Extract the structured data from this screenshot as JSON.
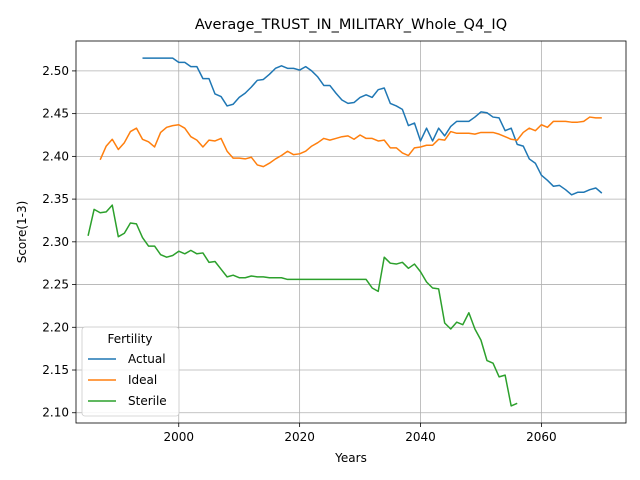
{
  "chart_data": {
    "type": "line",
    "title": "Average_TRUST_IN_MILITARY_Whole_Q4_IQ",
    "xlabel": "Years",
    "ylabel": "Score(1-3)",
    "xlim": [
      1983,
      2074
    ],
    "ylim": [
      2.088,
      2.535
    ],
    "xticks": [
      2000,
      2020,
      2040,
      2060
    ],
    "yticks": [
      2.1,
      2.15,
      2.2,
      2.25,
      2.3,
      2.35,
      2.4,
      2.45,
      2.5
    ],
    "grid": true,
    "legend": {
      "title": "Fertility",
      "position": "bottom-left"
    },
    "series": [
      {
        "name": "Actual",
        "color": "#1f77b4",
        "points": [
          [
            1994,
            2.515
          ],
          [
            1995,
            2.515
          ],
          [
            1996,
            2.515
          ],
          [
            1997,
            2.515
          ],
          [
            1998,
            2.515
          ],
          [
            1999,
            2.515
          ],
          [
            2000,
            2.51
          ],
          [
            2001,
            2.51
          ],
          [
            2002,
            2.505
          ],
          [
            2003,
            2.505
          ],
          [
            2004,
            2.491
          ],
          [
            2005,
            2.491
          ],
          [
            2006,
            2.473
          ],
          [
            2007,
            2.47
          ],
          [
            2008,
            2.459
          ],
          [
            2009,
            2.461
          ],
          [
            2010,
            2.469
          ],
          [
            2011,
            2.474
          ],
          [
            2012,
            2.481
          ],
          [
            2013,
            2.489
          ],
          [
            2014,
            2.49
          ],
          [
            2015,
            2.496
          ],
          [
            2016,
            2.503
          ],
          [
            2017,
            2.506
          ],
          [
            2018,
            2.503
          ],
          [
            2019,
            2.503
          ],
          [
            2020,
            2.501
          ],
          [
            2021,
            2.505
          ],
          [
            2022,
            2.5
          ],
          [
            2023,
            2.493
          ],
          [
            2024,
            2.483
          ],
          [
            2025,
            2.483
          ],
          [
            2026,
            2.474
          ],
          [
            2027,
            2.466
          ],
          [
            2028,
            2.462
          ],
          [
            2029,
            2.463
          ],
          [
            2030,
            2.469
          ],
          [
            2031,
            2.472
          ],
          [
            2032,
            2.469
          ],
          [
            2033,
            2.478
          ],
          [
            2034,
            2.48
          ],
          [
            2035,
            2.462
          ],
          [
            2036,
            2.459
          ],
          [
            2037,
            2.455
          ],
          [
            2038,
            2.436
          ],
          [
            2039,
            2.439
          ],
          [
            2040,
            2.418
          ],
          [
            2041,
            2.433
          ],
          [
            2042,
            2.418
          ],
          [
            2043,
            2.433
          ],
          [
            2044,
            2.424
          ],
          [
            2045,
            2.435
          ],
          [
            2046,
            2.441
          ],
          [
            2047,
            2.441
          ],
          [
            2048,
            2.441
          ],
          [
            2049,
            2.446
          ],
          [
            2050,
            2.452
          ],
          [
            2051,
            2.451
          ],
          [
            2052,
            2.446
          ],
          [
            2053,
            2.445
          ],
          [
            2054,
            2.43
          ],
          [
            2055,
            2.433
          ],
          [
            2056,
            2.414
          ],
          [
            2057,
            2.412
          ],
          [
            2058,
            2.397
          ],
          [
            2059,
            2.392
          ],
          [
            2060,
            2.378
          ],
          [
            2061,
            2.372
          ],
          [
            2062,
            2.365
          ],
          [
            2063,
            2.366
          ],
          [
            2064,
            2.361
          ],
          [
            2065,
            2.355
          ],
          [
            2066,
            2.358
          ],
          [
            2067,
            2.358
          ],
          [
            2068,
            2.361
          ],
          [
            2069,
            2.363
          ],
          [
            2070,
            2.357
          ]
        ]
      },
      {
        "name": "Ideal",
        "color": "#ff7f0e",
        "points": [
          [
            1987,
            2.396
          ],
          [
            1988,
            2.412
          ],
          [
            1989,
            2.42
          ],
          [
            1990,
            2.408
          ],
          [
            1991,
            2.416
          ],
          [
            1992,
            2.429
          ],
          [
            1993,
            2.433
          ],
          [
            1994,
            2.42
          ],
          [
            1995,
            2.417
          ],
          [
            1996,
            2.411
          ],
          [
            1997,
            2.428
          ],
          [
            1998,
            2.434
          ],
          [
            1999,
            2.436
          ],
          [
            2000,
            2.437
          ],
          [
            2001,
            2.433
          ],
          [
            2002,
            2.423
          ],
          [
            2003,
            2.419
          ],
          [
            2004,
            2.411
          ],
          [
            2005,
            2.419
          ],
          [
            2006,
            2.418
          ],
          [
            2007,
            2.421
          ],
          [
            2008,
            2.406
          ],
          [
            2009,
            2.398
          ],
          [
            2010,
            2.398
          ],
          [
            2011,
            2.397
          ],
          [
            2012,
            2.399
          ],
          [
            2013,
            2.39
          ],
          [
            2014,
            2.388
          ],
          [
            2015,
            2.392
          ],
          [
            2016,
            2.397
          ],
          [
            2017,
            2.401
          ],
          [
            2018,
            2.406
          ],
          [
            2019,
            2.402
          ],
          [
            2020,
            2.403
          ],
          [
            2021,
            2.406
          ],
          [
            2022,
            2.412
          ],
          [
            2023,
            2.416
          ],
          [
            2024,
            2.421
          ],
          [
            2025,
            2.419
          ],
          [
            2026,
            2.421
          ],
          [
            2027,
            2.423
          ],
          [
            2028,
            2.424
          ],
          [
            2029,
            2.42
          ],
          [
            2030,
            2.425
          ],
          [
            2031,
            2.421
          ],
          [
            2032,
            2.421
          ],
          [
            2033,
            2.418
          ],
          [
            2034,
            2.419
          ],
          [
            2035,
            2.41
          ],
          [
            2036,
            2.41
          ],
          [
            2037,
            2.404
          ],
          [
            2038,
            2.401
          ],
          [
            2039,
            2.41
          ],
          [
            2040,
            2.411
          ],
          [
            2041,
            2.413
          ],
          [
            2042,
            2.413
          ],
          [
            2043,
            2.42
          ],
          [
            2044,
            2.419
          ],
          [
            2045,
            2.429
          ],
          [
            2046,
            2.427
          ],
          [
            2047,
            2.427
          ],
          [
            2048,
            2.427
          ],
          [
            2049,
            2.426
          ],
          [
            2050,
            2.428
          ],
          [
            2051,
            2.428
          ],
          [
            2052,
            2.428
          ],
          [
            2053,
            2.426
          ],
          [
            2054,
            2.423
          ],
          [
            2055,
            2.42
          ],
          [
            2056,
            2.419
          ],
          [
            2057,
            2.428
          ],
          [
            2058,
            2.433
          ],
          [
            2059,
            2.43
          ],
          [
            2060,
            2.437
          ],
          [
            2061,
            2.434
          ],
          [
            2062,
            2.441
          ],
          [
            2063,
            2.441
          ],
          [
            2064,
            2.441
          ],
          [
            2065,
            2.44
          ],
          [
            2066,
            2.44
          ],
          [
            2067,
            2.441
          ],
          [
            2068,
            2.446
          ],
          [
            2069,
            2.445
          ],
          [
            2070,
            2.445
          ]
        ]
      },
      {
        "name": "Sterile",
        "color": "#2ca02c",
        "points": [
          [
            1985,
            2.307
          ],
          [
            1986,
            2.338
          ],
          [
            1987,
            2.334
          ],
          [
            1988,
            2.335
          ],
          [
            1989,
            2.343
          ],
          [
            1990,
            2.306
          ],
          [
            1991,
            2.31
          ],
          [
            1992,
            2.322
          ],
          [
            1993,
            2.321
          ],
          [
            1994,
            2.305
          ],
          [
            1995,
            2.295
          ],
          [
            1996,
            2.295
          ],
          [
            1997,
            2.285
          ],
          [
            1998,
            2.282
          ],
          [
            1999,
            2.284
          ],
          [
            2000,
            2.289
          ],
          [
            2001,
            2.286
          ],
          [
            2002,
            2.29
          ],
          [
            2003,
            2.286
          ],
          [
            2004,
            2.287
          ],
          [
            2005,
            2.276
          ],
          [
            2006,
            2.277
          ],
          [
            2007,
            2.268
          ],
          [
            2008,
            2.259
          ],
          [
            2009,
            2.261
          ],
          [
            2010,
            2.258
          ],
          [
            2011,
            2.258
          ],
          [
            2012,
            2.26
          ],
          [
            2013,
            2.259
          ],
          [
            2014,
            2.259
          ],
          [
            2015,
            2.258
          ],
          [
            2016,
            2.258
          ],
          [
            2017,
            2.258
          ],
          [
            2018,
            2.256
          ],
          [
            2019,
            2.256
          ],
          [
            2020,
            2.256
          ],
          [
            2021,
            2.256
          ],
          [
            2022,
            2.256
          ],
          [
            2023,
            2.256
          ],
          [
            2024,
            2.256
          ],
          [
            2025,
            2.256
          ],
          [
            2026,
            2.256
          ],
          [
            2027,
            2.256
          ],
          [
            2028,
            2.256
          ],
          [
            2029,
            2.256
          ],
          [
            2030,
            2.256
          ],
          [
            2031,
            2.256
          ],
          [
            2032,
            2.246
          ],
          [
            2033,
            2.242
          ],
          [
            2034,
            2.282
          ],
          [
            2035,
            2.275
          ],
          [
            2036,
            2.274
          ],
          [
            2037,
            2.276
          ],
          [
            2038,
            2.269
          ],
          [
            2039,
            2.274
          ],
          [
            2040,
            2.265
          ],
          [
            2041,
            2.253
          ],
          [
            2042,
            2.246
          ],
          [
            2043,
            2.245
          ],
          [
            2044,
            2.205
          ],
          [
            2045,
            2.198
          ],
          [
            2046,
            2.206
          ],
          [
            2047,
            2.203
          ],
          [
            2048,
            2.217
          ],
          [
            2049,
            2.198
          ],
          [
            2050,
            2.185
          ],
          [
            2051,
            2.161
          ],
          [
            2052,
            2.158
          ],
          [
            2053,
            2.142
          ],
          [
            2054,
            2.144
          ],
          [
            2055,
            2.108
          ],
          [
            2056,
            2.111
          ]
        ]
      }
    ]
  }
}
